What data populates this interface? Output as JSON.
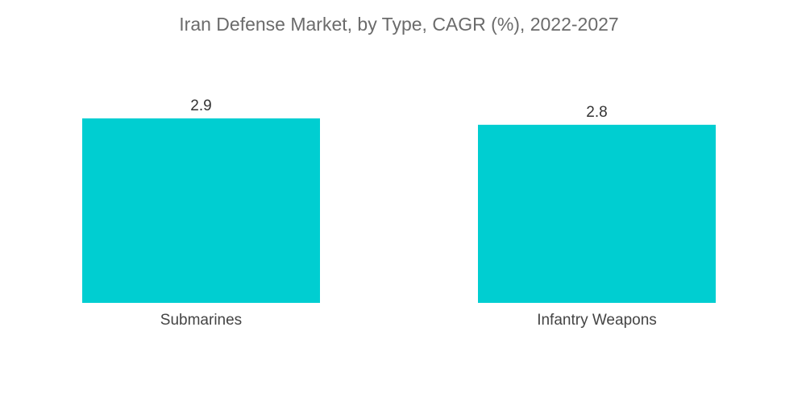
{
  "chart_data": {
    "type": "bar",
    "title": "Iran Defense Market, by Type, CAGR (%), 2022-2027",
    "categories": [
      "Submarines",
      "Infantry Weapons"
    ],
    "values": [
      2.9,
      2.8
    ],
    "value_labels": [
      "2.9",
      "2.8"
    ],
    "xlabel": "",
    "ylabel": "",
    "ylim": [
      0,
      2.9
    ],
    "grid": false,
    "legend": "none",
    "bar_color": "#00ced1"
  }
}
